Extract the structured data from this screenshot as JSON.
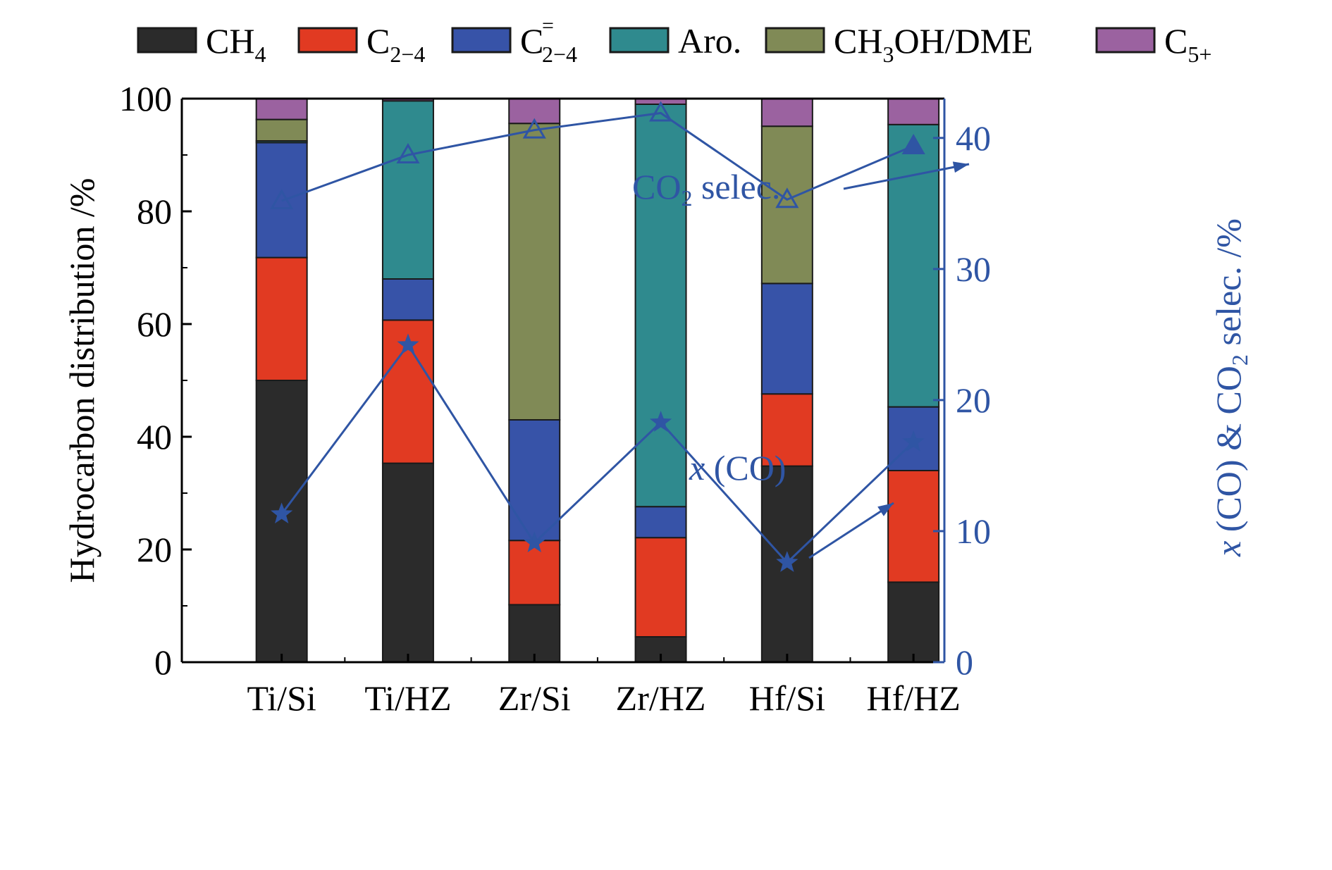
{
  "chart_data": {
    "type": "bar",
    "stacked": true,
    "categories": [
      "Ti/Si",
      "Ti/HZ",
      "Zr/Si",
      "Zr/HZ",
      "Hf/Si",
      "Hf/HZ"
    ],
    "series": [
      {
        "name": "CH4",
        "legend_main": "CH",
        "legend_sub": "4",
        "legend_sup": "",
        "color": "#2b2b2b",
        "values": [
          50,
          35.3,
          10.2,
          4.5,
          34.8,
          14.2
        ]
      },
      {
        "name": "C2-4",
        "legend_main": "C",
        "legend_sub": "2−4",
        "legend_sup": "",
        "color": "#e13a22",
        "values": [
          21.8,
          25.4,
          11.4,
          17.6,
          12.8,
          19.8
        ]
      },
      {
        "name": "C=2-4",
        "legend_main": "C",
        "legend_sub": "2−4",
        "legend_sup": "=",
        "color": "#3753a8",
        "values": [
          20.4,
          7.3,
          21.4,
          5.5,
          19.6,
          11.3
        ]
      },
      {
        "name": "Aro.",
        "legend_main": "Aro.",
        "legend_sub": "",
        "legend_sup": "",
        "color": "#2f8a8e",
        "values": [
          0.3,
          31.6,
          0,
          71.4,
          0,
          50.1
        ]
      },
      {
        "name": "CH3OH/DME",
        "legend_main": "CH",
        "legend_sub": "3",
        "legend_tail": "OH/DME",
        "legend_sup": "",
        "color": "#808a56",
        "values": [
          3.8,
          0,
          52.6,
          0,
          27.9,
          0
        ]
      },
      {
        "name": "C5+",
        "legend_main": "C",
        "legend_sub": "5+",
        "legend_sup": "",
        "color": "#9b62a0",
        "values": [
          3.7,
          0.4,
          4.4,
          1,
          4.9,
          4.6
        ]
      }
    ],
    "line_series": [
      {
        "name": "x (CO)",
        "marker": "star",
        "axis": "right",
        "values": [
          11.3,
          24.2,
          9.1,
          18.3,
          7.6,
          16.8
        ]
      },
      {
        "name": "CO2 selec.",
        "marker": "triangle-open",
        "axis": "right",
        "values": [
          35.2,
          38.7,
          40.6,
          41.9,
          35.3,
          39.4
        ]
      }
    ],
    "annotations": [
      {
        "main": "CO",
        "sub": "2",
        "tail": " selec."
      },
      {
        "main": "x",
        "tail": " (CO)"
      }
    ],
    "ylabel": "Hydrocarbon distribution /%",
    "y2label": {
      "italic": "x",
      "a": " (CO) & CO",
      "sub": "2",
      "b": " selec. /%"
    },
    "ylim": [
      0,
      100
    ],
    "y2lim": [
      0,
      43
    ],
    "yticks": [
      0,
      20,
      40,
      60,
      80,
      100
    ],
    "y2ticks": [
      0,
      10,
      20,
      30,
      40
    ],
    "legend_position": "top",
    "grid": false,
    "axis_color": "#000000",
    "right_axis_color": "#2f55a4",
    "line_color": "#2f55a4"
  }
}
